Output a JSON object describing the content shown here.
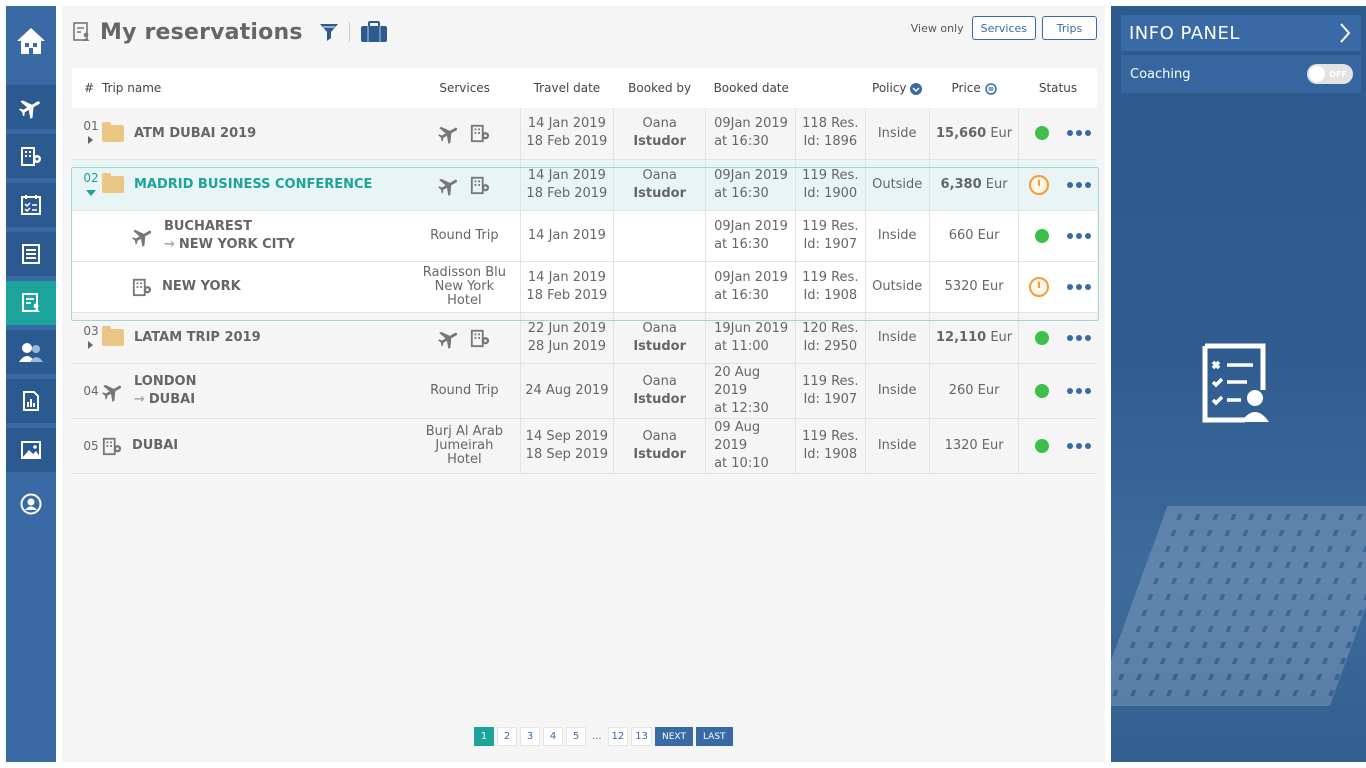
{
  "header": {
    "title": "My reservations",
    "view_only_label": "View only",
    "services_btn": "Services",
    "trips_btn": "Trips"
  },
  "table": {
    "columns": {
      "num": "#",
      "trip_name": "Trip name",
      "services": "Services",
      "travel_date": "Travel date",
      "booked_by": "Booked by",
      "booked_date": "Booked date",
      "policy": "Policy",
      "price": "Price",
      "status": "Status"
    },
    "rows": [
      {
        "num": "01",
        "name": "ATM DUBAI 2019",
        "travel1": "14 Jan 2019",
        "travel2": "18 Feb 2019",
        "by1": "Oana",
        "by2": "Istudor",
        "bd1": "09Jan 2019",
        "bd2": "at 16:30",
        "res1": "118 Res.",
        "res2": "Id: 1896",
        "policy": "Inside",
        "price_num": "15,660",
        "price_cur": "Eur",
        "status": "ok"
      },
      {
        "num": "02",
        "name": "MADRID BUSINESS CONFERENCE",
        "travel1": "14 Jan 2019",
        "travel2": "18 Feb 2019",
        "by1": "Oana",
        "by2": "Istudor",
        "bd1": "09Jan 2019",
        "bd2": "at 16:30",
        "res1": "119 Res.",
        "res2": "Id: 1900",
        "policy": "Outside",
        "price_num": "6,380",
        "price_cur": "Eur",
        "status": "pending"
      },
      {
        "num": "",
        "name1": "BUCHAREST",
        "name2": "NEW YORK CITY",
        "svc": "Round Trip",
        "travel1": "14 Jan 2019",
        "travel2": "",
        "bd1": "09Jan 2019",
        "bd2": "at 16:30",
        "res1": "119 Res.",
        "res2": "Id: 1907",
        "policy": "Inside",
        "price": "660 Eur",
        "status": "ok"
      },
      {
        "num": "",
        "name": "NEW YORK",
        "svc1": "Radisson Blu",
        "svc2": "New York",
        "svc3": "Hotel",
        "travel1": "14 Jan 2019",
        "travel2": "18 Feb 2019",
        "bd1": "09Jan 2019",
        "bd2": "at 16:30",
        "res1": "119 Res.",
        "res2": "Id: 1908",
        "policy": "Outside",
        "price": "5320 Eur",
        "status": "pending"
      },
      {
        "num": "03",
        "name": "LATAM TRIP 2019",
        "travel1": "22 Jun 2019",
        "travel2": "28 Jun 2019",
        "by1": "Oana",
        "by2": "Istudor",
        "bd1": "19Jun 2019",
        "bd2": "at 11:00",
        "res1": "120 Res.",
        "res2": "Id: 2950",
        "policy": "Inside",
        "price_num": "12,110",
        "price_cur": "Eur",
        "status": "ok"
      },
      {
        "num": "04",
        "name1": "LONDON",
        "name2": "DUBAI",
        "svc": "Round Trip",
        "travel1": "24 Aug 2019",
        "by1": "Oana",
        "by2": "Istudor",
        "bd1": "20 Aug 2019",
        "bd2": "at 12:30",
        "res1": "119 Res.",
        "res2": "Id: 1907",
        "policy": "Inside",
        "price": "260 Eur",
        "status": "ok"
      },
      {
        "num": "05",
        "name": "DUBAI",
        "svc1": "Burj Al Arab",
        "svc2": "Jumeirah",
        "svc3": "Hotel",
        "travel1": "14 Sep 2019",
        "travel2": "18 Sep 2019",
        "by1": "Oana",
        "by2": "Istudor",
        "bd1": "09 Aug 2019",
        "bd2": "at 10:10",
        "res1": "119 Res.",
        "res2": "Id: 1908",
        "policy": "Inside",
        "price": "1320 Eur",
        "status": "ok"
      }
    ]
  },
  "pager": {
    "pages": [
      "1",
      "2",
      "3",
      "4",
      "5",
      "...",
      "12",
      "13"
    ],
    "next": "NEXT",
    "last": "LAST"
  },
  "info_panel": {
    "title": "INFO PANEL",
    "coaching_label": "Coaching",
    "toggle_state": "OFF"
  },
  "colors": {
    "brand_blue": "#3a6aa6",
    "teal": "#1ba39c",
    "outside_red": "#d0103a",
    "ok_green": "#3fbf4a",
    "pending_orange": "#f29d38"
  }
}
